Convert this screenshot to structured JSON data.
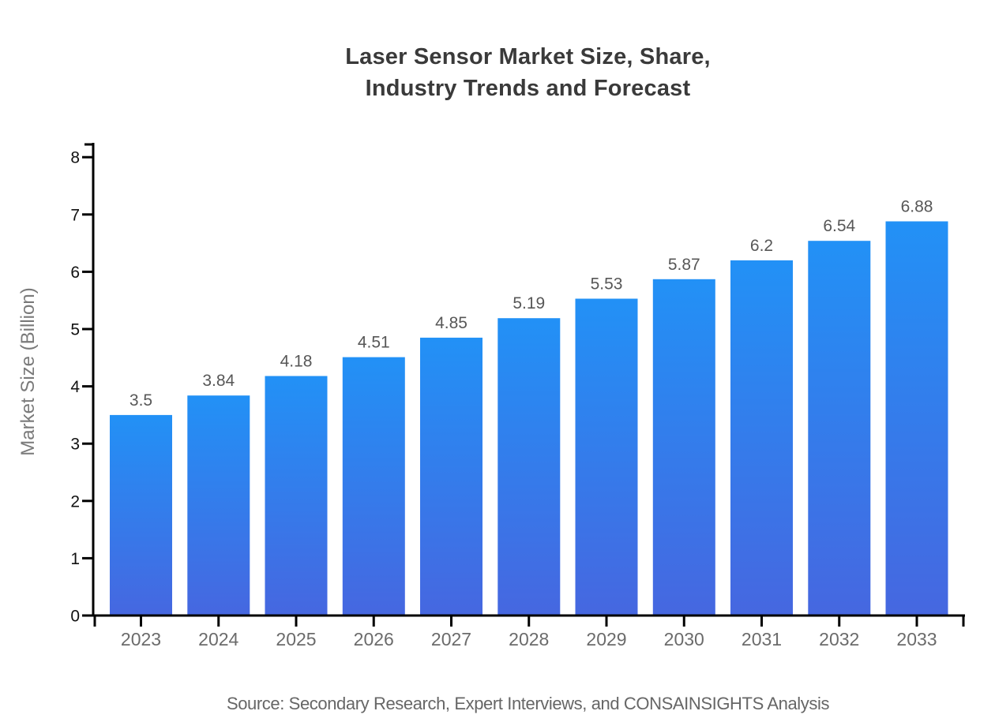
{
  "page": {
    "title": "Laser Sensor Market Size, Share,\nIndustry Trends and Forecast",
    "source_note": "Source: Secondary Research, Expert Interviews, and CONSAINSIGHTS Analysis"
  },
  "chart_data": {
    "type": "bar",
    "title": "Laser Sensor Market Size, Share, Industry Trends and Forecast",
    "categories": [
      "2023",
      "2024",
      "2025",
      "2026",
      "2027",
      "2028",
      "2029",
      "2030",
      "2031",
      "2032",
      "2033"
    ],
    "values": [
      3.5,
      3.84,
      4.18,
      4.51,
      4.85,
      5.19,
      5.53,
      5.87,
      6.2,
      6.54,
      6.88
    ],
    "value_labels": [
      "3.5",
      "3.84",
      "4.18",
      "4.51",
      "4.85",
      "5.19",
      "5.53",
      "5.87",
      "6.2",
      "6.54",
      "6.88"
    ],
    "xlabel": "",
    "ylabel": "Market Size (Billion)",
    "ylim": [
      0,
      8
    ],
    "yticks": [
      "0",
      "1",
      "2",
      "3",
      "4",
      "5",
      "6",
      "7",
      "8"
    ],
    "grid": false,
    "legend": false,
    "layout_hints": {
      "bar_value_labels": "above bars",
      "axis_style": "left and bottom spines with outward ticks"
    },
    "colors": {
      "bar_gradient_top": "#2291f6",
      "bar_gradient_bottom": "#4667e0",
      "axis": "#000000",
      "y_tick_label": "#111111",
      "x_tick_label": "#6b6b6b",
      "value_label": "#575757",
      "title": "#3a3a3a",
      "axis_title": "#7a7a7a",
      "source": "#666666"
    }
  }
}
